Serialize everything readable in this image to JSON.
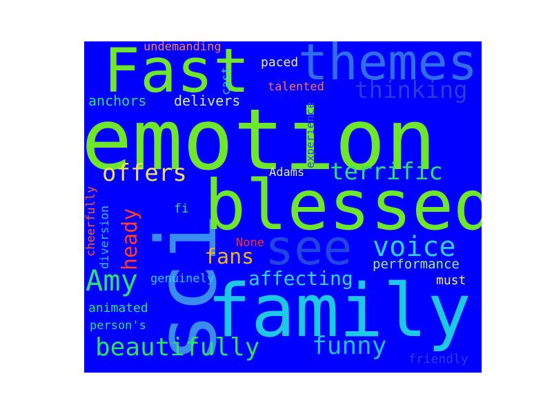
{
  "cloud": {
    "background": "#0000ff",
    "words": {
      "emotion": {
        "text": "emotion",
        "color": "#6ee629"
      },
      "sci": {
        "text": "sci",
        "color": "#3a8cf0"
      },
      "family": {
        "text": "family",
        "color": "#1fc8e8"
      },
      "blessed": {
        "text": "blessed",
        "color": "#6ee629"
      },
      "fast": {
        "text": "Fast",
        "color": "#6ee629"
      },
      "themes": {
        "text": "themes",
        "color": "#2f6ee8"
      },
      "see": {
        "text": "see",
        "color": "#2244e0"
      },
      "voice": {
        "text": "voice",
        "color": "#2fd0e8"
      },
      "amy": {
        "text": "Amy",
        "color": "#2fe070"
      },
      "beautifully": {
        "text": "beautifully",
        "color": "#2fe060"
      },
      "funny": {
        "text": "funny",
        "color": "#24c0e6"
      },
      "terrific": {
        "text": "terrific",
        "color": "#2fe070"
      },
      "offers": {
        "text": "offers",
        "color": "#f0e060"
      },
      "thinking": {
        "text": "thinking",
        "color": "#2a3cd8"
      },
      "heady": {
        "text": "heady",
        "color": "#ff4020"
      },
      "fans": {
        "text": "fans",
        "color": "#f0b020"
      },
      "affecting": {
        "text": "affecting",
        "color": "#2fd8e0"
      },
      "delivers": {
        "text": "delivers",
        "color": "#d8f080"
      },
      "anchors": {
        "text": "anchors",
        "color": "#2fe070"
      },
      "undemanding": {
        "text": "undemanding",
        "color": "#ff8040"
      },
      "paced": {
        "text": "paced",
        "color": "#f0f060"
      },
      "talented": {
        "text": "talented",
        "color": "#ff7040"
      },
      "cast": {
        "text": "cast",
        "color": "#2fd0e8"
      },
      "experience": {
        "text": "experience",
        "color": "#2850e8"
      },
      "adams": {
        "text": "Adams",
        "color": "#e0f080"
      },
      "fi": {
        "text": "fi",
        "color": "#2fe070"
      },
      "cheerfully": {
        "text": "cheerfully",
        "color": "#ff6020"
      },
      "diversion": {
        "text": "diversion",
        "color": "#2fc0e8"
      },
      "none": {
        "text": "None",
        "color": "#ff3020"
      },
      "performance": {
        "text": "performance",
        "color": "#a0f060"
      },
      "genuinely": {
        "text": "genuinely",
        "color": "#2fd0e8"
      },
      "must": {
        "text": "must",
        "color": "#f0f060"
      },
      "animated": {
        "text": "animated",
        "color": "#2fe070"
      },
      "persons": {
        "text": "person's",
        "color": "#2fe070"
      },
      "friendly": {
        "text": "friendly",
        "color": "#2840e0"
      }
    }
  }
}
